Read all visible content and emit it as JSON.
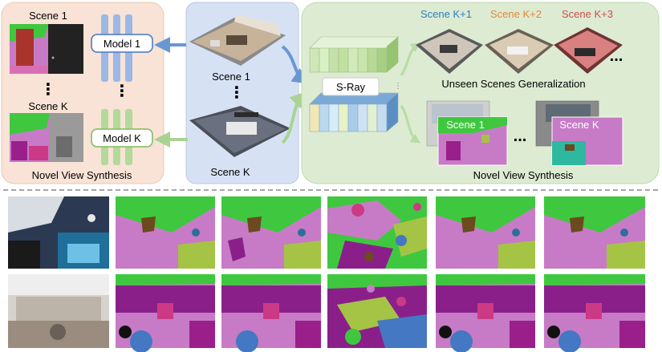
{
  "left_panel": {
    "scene_1_label": "Scene 1",
    "dots_1": "⋮",
    "scene_k_label": "Scene K",
    "model_1_label": "Model 1",
    "model_dots": "⋮",
    "model_k_label": "Model K",
    "caption": "Novel View Synthesis"
  },
  "middle_panel": {
    "scene_1_label": "Scene 1",
    "dots": "⋮",
    "scene_k_label": "Scene K"
  },
  "right_panel": {
    "scene_k1_label": "Scene K+1",
    "scene_k2_label": "Scene K+2",
    "scene_k3_label": "Scene K+3",
    "more_dots": "...",
    "sray_label": "S-Ray",
    "unseen_caption": "Unseen Scenes Generalization",
    "view_scene_1_label": "Scene 1",
    "view_dots": "...",
    "view_scene_k_label": "Scene K",
    "nvs_caption": "Novel View Synthesis"
  },
  "colors": {
    "left_bg": "#f8e3d6",
    "middle_bg": "#d6e2f3",
    "right_bg": "#dcebd2",
    "scene_k1": "#2f7fc4",
    "scene_k2": "#e4873a",
    "scene_k3": "#cf4e4e",
    "seg_green": "#3fc83f",
    "seg_pink": "#c77bc6",
    "seg_purple": "#8a1f8a",
    "seg_olive": "#a5c445",
    "seg_blue": "#4478c2",
    "seg_brown": "#6b4a1f"
  }
}
